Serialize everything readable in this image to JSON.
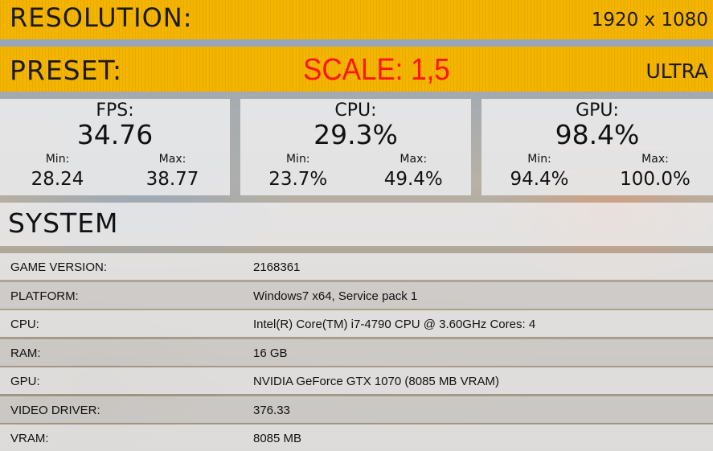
{
  "resolution": {
    "label": "RESOLUTION:",
    "value": "1920 x 1080"
  },
  "preset": {
    "label": "PRESET:",
    "scale": "SCALE: 1,5",
    "value": "ULTRA"
  },
  "stats": {
    "fps": {
      "name": "FPS:",
      "current": "34.76",
      "min_label": "Min:",
      "min": "28.24",
      "max_label": "Max:",
      "max": "38.77"
    },
    "cpu": {
      "name": "CPU:",
      "current": "29.3%",
      "min_label": "Min:",
      "min": "23.7%",
      "max_label": "Max:",
      "max": "49.4%"
    },
    "gpu": {
      "name": "GPU:",
      "current": "98.4%",
      "min_label": "Min:",
      "min": "94.4%",
      "max_label": "Max:",
      "max": "100.0%"
    }
  },
  "system": {
    "title": "SYSTEM",
    "rows": [
      {
        "key": "GAME VERSION:",
        "value": "2168361"
      },
      {
        "key": "PLATFORM:",
        "value": "Windows7 x64, Service pack 1"
      },
      {
        "key": "CPU:",
        "value": "Intel(R) Core(TM) i7-4790 CPU @ 3.60GHz Cores: 4"
      },
      {
        "key": "RAM:",
        "value": "16 GB"
      },
      {
        "key": "GPU:",
        "value": "NVIDIA GeForce GTX 1070 (8085 MB VRAM)"
      },
      {
        "key": "VIDEO DRIVER:",
        "value": "376.33"
      },
      {
        "key": "VRAM:",
        "value": "8085 MB"
      }
    ]
  },
  "colors": {
    "accent": "#f4b400",
    "scale_text": "#ff1414"
  }
}
